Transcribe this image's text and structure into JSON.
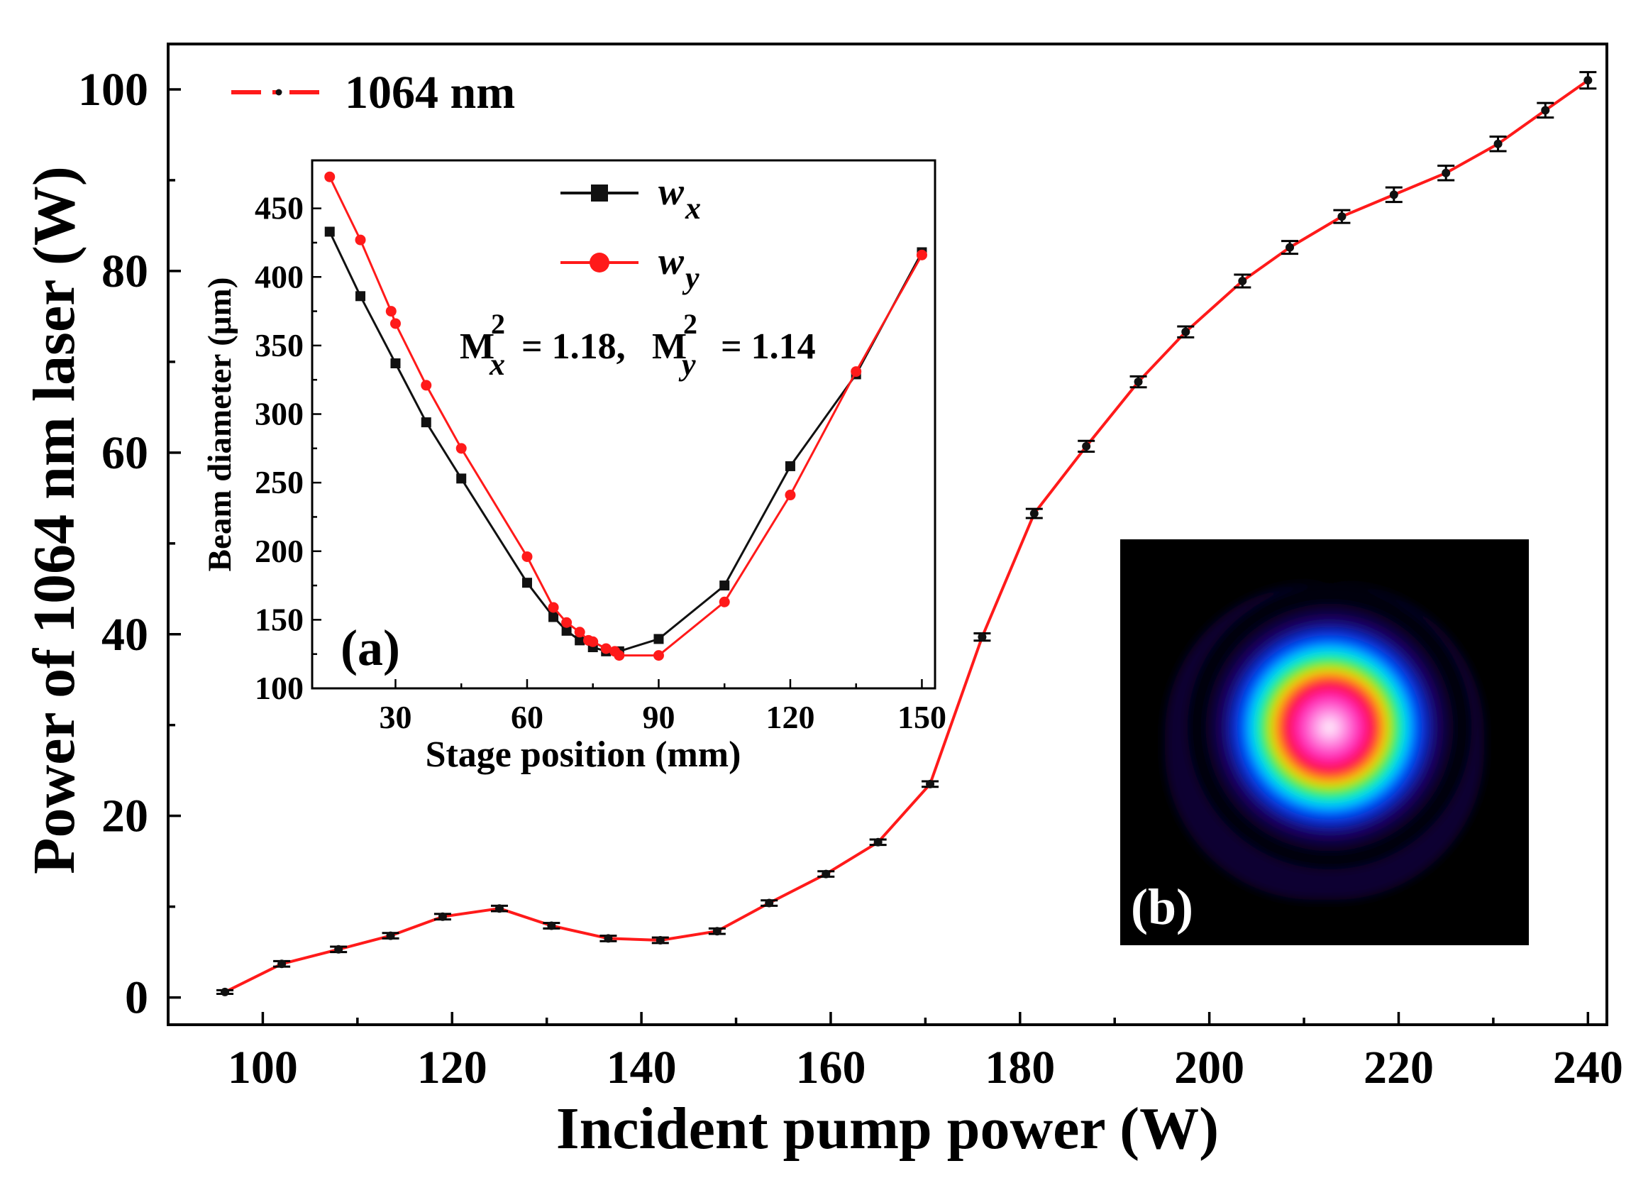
{
  "chart_data": [
    {
      "id": "main",
      "type": "line",
      "title": "",
      "xlabel": "Incident pump power (W)",
      "ylabel": "Power of 1064 nm laser (W)",
      "xlim": [
        90,
        242
      ],
      "ylim": [
        -3,
        105
      ],
      "xticks": [
        100,
        120,
        140,
        160,
        180,
        200,
        220,
        240
      ],
      "yticks": [
        0,
        20,
        40,
        60,
        80,
        100
      ],
      "tick_labels_x": [
        "100",
        "120",
        "140",
        "160",
        "180",
        "200",
        "220",
        "240"
      ],
      "tick_labels_y": [
        "0",
        "20",
        "40",
        "60",
        "80",
        "100"
      ],
      "legend": {
        "position": "top-left",
        "label": "1064 nm"
      },
      "series": [
        {
          "name": "1064 nm",
          "color": "#ff1a1a",
          "marker_color": "#111111",
          "x": [
            96,
            102,
            108,
            113.5,
            119,
            125,
            130.5,
            136.5,
            142,
            148,
            153.5,
            159.5,
            165,
            170.5,
            176,
            181.5,
            187,
            192.5,
            197.5,
            203.5,
            208.5,
            214,
            219.5,
            225,
            230.5,
            235.5,
            240
          ],
          "y": [
            0.6,
            3.7,
            5.3,
            6.8,
            8.9,
            9.8,
            7.9,
            6.5,
            6.3,
            7.3,
            10.4,
            13.6,
            17.1,
            23.5,
            39.7,
            53.3,
            60.7,
            67.8,
            73.3,
            78.9,
            82.6,
            86.0,
            88.4,
            90.8,
            94.0,
            97.7,
            101.0
          ],
          "errors": [
            0.2,
            0.3,
            0.3,
            0.3,
            0.3,
            0.3,
            0.3,
            0.3,
            0.3,
            0.3,
            0.3,
            0.3,
            0.3,
            0.3,
            0.4,
            0.5,
            0.6,
            0.6,
            0.6,
            0.7,
            0.7,
            0.7,
            0.8,
            0.8,
            0.8,
            0.8,
            0.9
          ]
        }
      ]
    },
    {
      "id": "inset",
      "type": "line",
      "panel_label": "(a)",
      "xlabel": "Stage position (mm)",
      "ylabel": "Beam diameter (μm)",
      "xlim": [
        11,
        153
      ],
      "ylim": [
        100,
        485
      ],
      "xticks": [
        30,
        60,
        90,
        120,
        150
      ],
      "yticks": [
        100,
        150,
        200,
        250,
        300,
        350,
        400,
        450
      ],
      "tick_labels_x": [
        "30",
        "60",
        "90",
        "120",
        "150"
      ],
      "tick_labels_y": [
        "100",
        "150",
        "200",
        "250",
        "300",
        "350",
        "400",
        "450"
      ],
      "annotation": {
        "m": "M",
        "sq": "2",
        "x": "x",
        "y": "y",
        "eq_x": " = 1.18, ",
        "eq_y": "  = 1.14"
      },
      "legend": {
        "position": "top-center",
        "entries": [
          "w_x",
          "w_y"
        ],
        "w": "w",
        "sub_x": "x",
        "sub_y": "y"
      },
      "series": [
        {
          "name": "w_x",
          "color": "#111111",
          "marker": "square",
          "x": [
            15,
            22,
            30,
            37,
            45,
            60,
            66,
            69,
            72,
            75,
            78,
            81,
            90,
            105,
            120,
            135,
            150
          ],
          "y": [
            433,
            386,
            337,
            294,
            253,
            177,
            152,
            142,
            135,
            130,
            127,
            127,
            136,
            175,
            262,
            329,
            418
          ],
          "errors": []
        },
        {
          "name": "w_y",
          "color": "#ff1a1a",
          "marker": "circle",
          "x": [
            15,
            22,
            29,
            30,
            37,
            45,
            60,
            66,
            69,
            72,
            74,
            75,
            78,
            80,
            81,
            90,
            105,
            120,
            135,
            150
          ],
          "y": [
            473,
            427,
            375,
            366,
            321,
            275,
            196,
            159,
            148,
            141,
            135,
            134,
            129,
            127,
            124,
            124,
            163,
            241,
            331,
            416
          ],
          "errors": []
        }
      ]
    }
  ],
  "beam_image": {
    "panel_label": "(b)"
  }
}
